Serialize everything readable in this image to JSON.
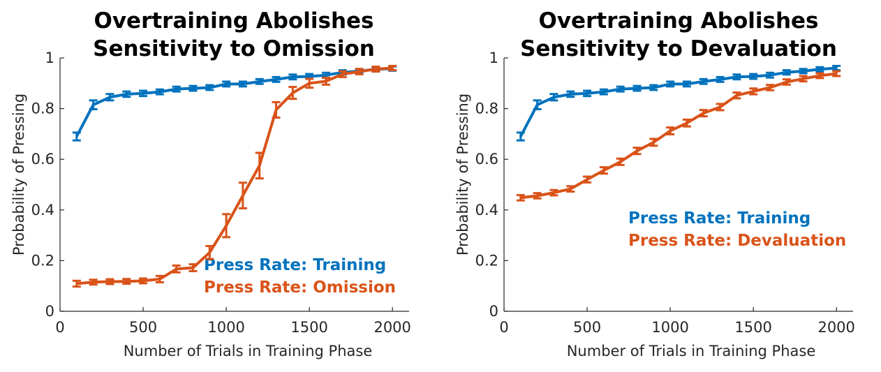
{
  "colors": {
    "training": "#0072BD",
    "test": "#D95319",
    "axis": "#262626"
  },
  "chart_data": [
    {
      "type": "line",
      "title_line1": "Overtraining Abolishes",
      "title_line2": "Sensitivity to Omission",
      "xlabel": "Number of Trials in Training Phase",
      "ylabel": "Probability of Pressing",
      "xlim": [
        0,
        2100
      ],
      "ylim": [
        0,
        1
      ],
      "xticks": [
        "0",
        "500",
        "1000",
        "1500",
        "2000"
      ],
      "yticks": [
        "0",
        "0.2",
        "0.4",
        "0.6",
        "0.8",
        "1"
      ],
      "grid": false,
      "legend_placement": "bottom-right",
      "x": [
        100,
        200,
        300,
        400,
        500,
        600,
        700,
        800,
        900,
        1000,
        1100,
        1200,
        1300,
        1400,
        1500,
        1600,
        1700,
        1800,
        1900,
        2000
      ],
      "series": [
        {
          "name": "Press Rate: Training",
          "color": "#0072BD",
          "values": [
            0.69,
            0.815,
            0.845,
            0.857,
            0.86,
            0.866,
            0.877,
            0.88,
            0.883,
            0.897,
            0.897,
            0.907,
            0.915,
            0.925,
            0.927,
            0.932,
            0.943,
            0.948,
            0.955,
            0.958
          ],
          "errors": [
            0.01,
            0.012,
            0.007,
            0.005,
            0.005,
            0.004,
            0.004,
            0.004,
            0.004,
            0.004,
            0.004,
            0.004,
            0.004,
            0.004,
            0.004,
            0.004,
            0.003,
            0.003,
            0.003,
            0.003
          ]
        },
        {
          "name": "Press Rate: Omission",
          "color": "#D95319",
          "values": [
            0.109,
            0.115,
            0.117,
            0.118,
            0.12,
            0.127,
            0.167,
            0.172,
            0.232,
            0.338,
            0.457,
            0.575,
            0.795,
            0.862,
            0.9,
            0.908,
            0.936,
            0.946,
            0.956,
            0.96
          ],
          "errors": [
            0.006,
            0.004,
            0.004,
            0.004,
            0.004,
            0.007,
            0.008,
            0.008,
            0.02,
            0.04,
            0.045,
            0.045,
            0.025,
            0.018,
            0.012,
            0.008,
            0.006,
            0.005,
            0.004,
            0.003
          ]
        }
      ]
    },
    {
      "type": "line",
      "title_line1": "Overtraining Abolishes",
      "title_line2": "Sensitivity to Devaluation",
      "xlabel": "Number of Trials in Training Phase",
      "ylabel": "Probability of Pressing",
      "xlim": [
        0,
        2100
      ],
      "ylim": [
        0,
        1
      ],
      "xticks": [
        "0",
        "500",
        "1000",
        "1500",
        "2000"
      ],
      "yticks": [
        "0",
        "0.2",
        "0.4",
        "0.6",
        "0.8",
        "1"
      ],
      "grid": false,
      "legend_placement": "center-right",
      "x": [
        100,
        200,
        300,
        400,
        500,
        600,
        700,
        800,
        900,
        1000,
        1100,
        1200,
        1300,
        1400,
        1500,
        1600,
        1700,
        1800,
        1900,
        2000
      ],
      "series": [
        {
          "name": "Press Rate: Training",
          "color": "#0072BD",
          "values": [
            0.69,
            0.815,
            0.845,
            0.857,
            0.86,
            0.866,
            0.877,
            0.88,
            0.883,
            0.897,
            0.897,
            0.907,
            0.915,
            0.925,
            0.927,
            0.932,
            0.943,
            0.948,
            0.955,
            0.96
          ],
          "errors": [
            0.01,
            0.012,
            0.007,
            0.005,
            0.005,
            0.004,
            0.004,
            0.004,
            0.004,
            0.004,
            0.004,
            0.004,
            0.004,
            0.004,
            0.004,
            0.004,
            0.003,
            0.003,
            0.003,
            0.003
          ]
        },
        {
          "name": "Press Rate: Devaluation",
          "color": "#D95319",
          "values": [
            0.448,
            0.456,
            0.468,
            0.483,
            0.52,
            0.556,
            0.59,
            0.633,
            0.667,
            0.712,
            0.743,
            0.782,
            0.806,
            0.852,
            0.868,
            0.883,
            0.905,
            0.918,
            0.93,
            0.938
          ],
          "errors": [
            0.005,
            0.005,
            0.005,
            0.005,
            0.006,
            0.007,
            0.007,
            0.007,
            0.008,
            0.008,
            0.008,
            0.007,
            0.007,
            0.006,
            0.006,
            0.005,
            0.005,
            0.005,
            0.004,
            0.004
          ]
        }
      ]
    }
  ]
}
